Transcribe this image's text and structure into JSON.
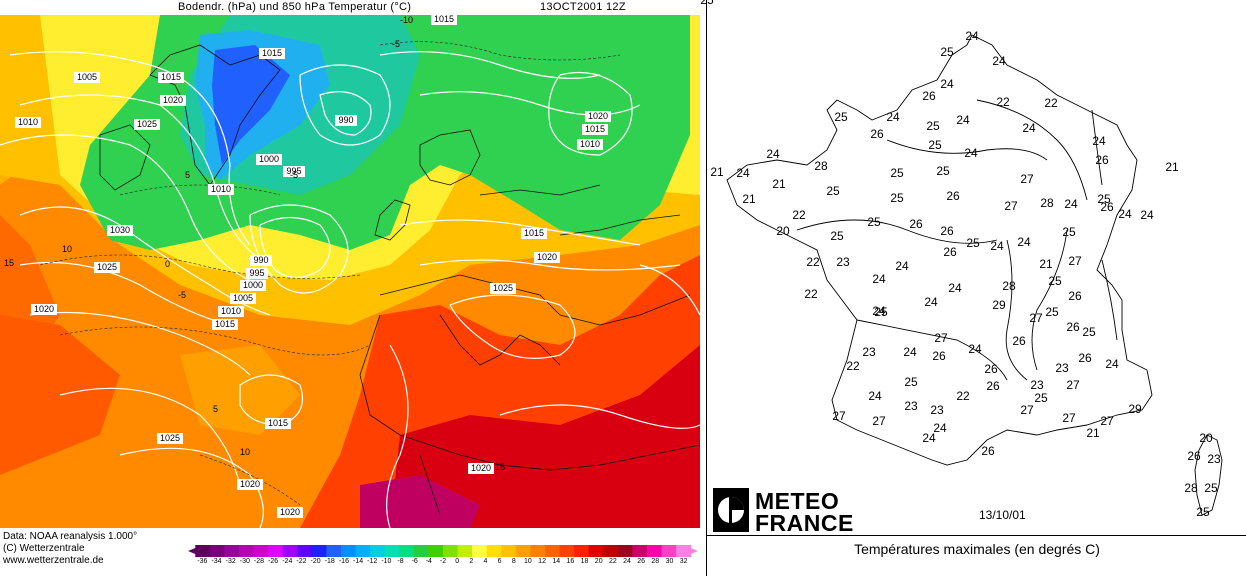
{
  "left_panel": {
    "title": "Bodendr. (hPa) und 850 hPa Temperatur (°C)",
    "date": "13OCT2001 12Z",
    "footer": {
      "line1": "Data: NOAA reanalysis 1.000°",
      "line2": "(C) Wetterzentrale",
      "line3": "www.wetterzentrale.de"
    },
    "color_scale": {
      "labels": [
        "-36",
        "-34",
        "-32",
        "-30",
        "-28",
        "-26",
        "-24",
        "-22",
        "-20",
        "-18",
        "-16",
        "-14",
        "-12",
        "-10",
        "-8",
        "-6",
        "-4",
        "-2",
        "0",
        "2",
        "4",
        "6",
        "8",
        "10",
        "12",
        "14",
        "16",
        "18",
        "20",
        "22",
        "24",
        "26",
        "28",
        "30",
        "32"
      ],
      "colors": [
        "#5a005a",
        "#7a007a",
        "#9a009a",
        "#b800b8",
        "#d000d0",
        "#e000ff",
        "#a000ff",
        "#6000ff",
        "#2020ff",
        "#2060ff",
        "#0090ff",
        "#00b0ff",
        "#00d0e0",
        "#00e0b0",
        "#00e080",
        "#20d040",
        "#40d000",
        "#80e000",
        "#c0f000",
        "#ffff40",
        "#ffe000",
        "#ffc000",
        "#ffa000",
        "#ff8000",
        "#ff6000",
        "#ff4000",
        "#ff2000",
        "#e00000",
        "#c00000",
        "#a00020",
        "#d0006a",
        "#ff00aa",
        "#ff40c0",
        "#ff80e0"
      ]
    },
    "isobar_labels": [
      {
        "text": "1015"
      },
      {
        "text": "1005"
      },
      {
        "text": "1015"
      },
      {
        "text": "1020"
      },
      {
        "text": "1025"
      },
      {
        "text": "1010"
      },
      {
        "text": "990"
      },
      {
        "text": "1000"
      },
      {
        "text": "995"
      },
      {
        "text": "1010"
      },
      {
        "text": "1030"
      },
      {
        "text": "1025"
      },
      {
        "text": "990"
      },
      {
        "text": "995"
      },
      {
        "text": "1000"
      },
      {
        "text": "1005"
      },
      {
        "text": "1010"
      },
      {
        "text": "1015"
      },
      {
        "text": "1020"
      },
      {
        "text": "1025"
      },
      {
        "text": "1020"
      },
      {
        "text": "1020"
      },
      {
        "text": "1015"
      },
      {
        "text": "1025"
      },
      {
        "text": "1020"
      },
      {
        "text": "1015"
      },
      {
        "text": "1010"
      },
      {
        "text": "1015"
      },
      {
        "text": "1020"
      },
      {
        "text": "1020"
      },
      {
        "text": "1015"
      }
    ],
    "temp_labels": [
      "-10",
      "-5",
      "10",
      "15",
      "-5",
      "5",
      "0",
      "-5",
      "5",
      "10",
      "15"
    ]
  },
  "right_panel": {
    "logo": {
      "line1": "METEO",
      "line2": "FRANCE"
    },
    "date": "13/10/01",
    "caption": "Températures maximales (en degrés C)",
    "temperatures": [
      {
        "v": "24"
      },
      {
        "v": "25"
      },
      {
        "v": "24"
      },
      {
        "v": "24"
      },
      {
        "v": "26"
      },
      {
        "v": "22"
      },
      {
        "v": "22"
      },
      {
        "v": "25"
      },
      {
        "v": "24"
      },
      {
        "v": "26"
      },
      {
        "v": "25"
      },
      {
        "v": "24"
      },
      {
        "v": "24"
      },
      {
        "v": "25"
      },
      {
        "v": "24"
      },
      {
        "v": "21"
      },
      {
        "v": "24"
      },
      {
        "v": "24"
      },
      {
        "v": "28"
      },
      {
        "v": "21"
      },
      {
        "v": "25"
      },
      {
        "v": "25"
      },
      {
        "v": "25"
      },
      {
        "v": "24"
      },
      {
        "v": "26"
      },
      {
        "v": "27"
      },
      {
        "v": "25"
      },
      {
        "v": "21"
      },
      {
        "v": "21"
      },
      {
        "v": "22"
      },
      {
        "v": "26"
      },
      {
        "v": "25"
      },
      {
        "v": "27"
      },
      {
        "v": "28"
      },
      {
        "v": "24"
      },
      {
        "v": "26"
      },
      {
        "v": "24"
      },
      {
        "v": "24"
      },
      {
        "v": "20"
      },
      {
        "v": "25"
      },
      {
        "v": "25"
      },
      {
        "v": "26"
      },
      {
        "v": "26"
      },
      {
        "v": "25"
      },
      {
        "v": "24"
      },
      {
        "v": "24"
      },
      {
        "v": "25"
      },
      {
        "v": "22"
      },
      {
        "v": "23"
      },
      {
        "v": "24"
      },
      {
        "v": "26"
      },
      {
        "v": "21"
      },
      {
        "v": "27"
      },
      {
        "v": "22"
      },
      {
        "v": "24"
      },
      {
        "v": "24"
      },
      {
        "v": "24"
      },
      {
        "v": "28"
      },
      {
        "v": "25"
      },
      {
        "v": "26"
      },
      {
        "v": "25"
      },
      {
        "v": "24"
      },
      {
        "v": "29"
      },
      {
        "v": "27"
      },
      {
        "v": "25"
      },
      {
        "v": "26"
      },
      {
        "v": "25"
      },
      {
        "v": "23"
      },
      {
        "v": "27"
      },
      {
        "v": "24"
      },
      {
        "v": "26"
      },
      {
        "v": "26"
      },
      {
        "v": "22"
      },
      {
        "v": "24"
      },
      {
        "v": "26"
      },
      {
        "v": "23"
      },
      {
        "v": "26"
      },
      {
        "v": "24"
      },
      {
        "v": "25"
      },
      {
        "v": "26"
      },
      {
        "v": "23"
      },
      {
        "v": "27"
      },
      {
        "v": "27"
      },
      {
        "v": "24"
      },
      {
        "v": "23"
      },
      {
        "v": "23"
      },
      {
        "v": "22"
      },
      {
        "v": "27"
      },
      {
        "v": "25"
      },
      {
        "v": "27"
      },
      {
        "v": "27"
      },
      {
        "v": "29"
      },
      {
        "v": "27"
      },
      {
        "v": "24"
      },
      {
        "v": "24"
      },
      {
        "v": "21"
      },
      {
        "v": "26"
      },
      {
        "v": "20"
      },
      {
        "v": "26"
      },
      {
        "v": "23"
      },
      {
        "v": "28"
      },
      {
        "v": "25"
      },
      {
        "v": "25"
      },
      {
        "v": "25"
      }
    ]
  }
}
